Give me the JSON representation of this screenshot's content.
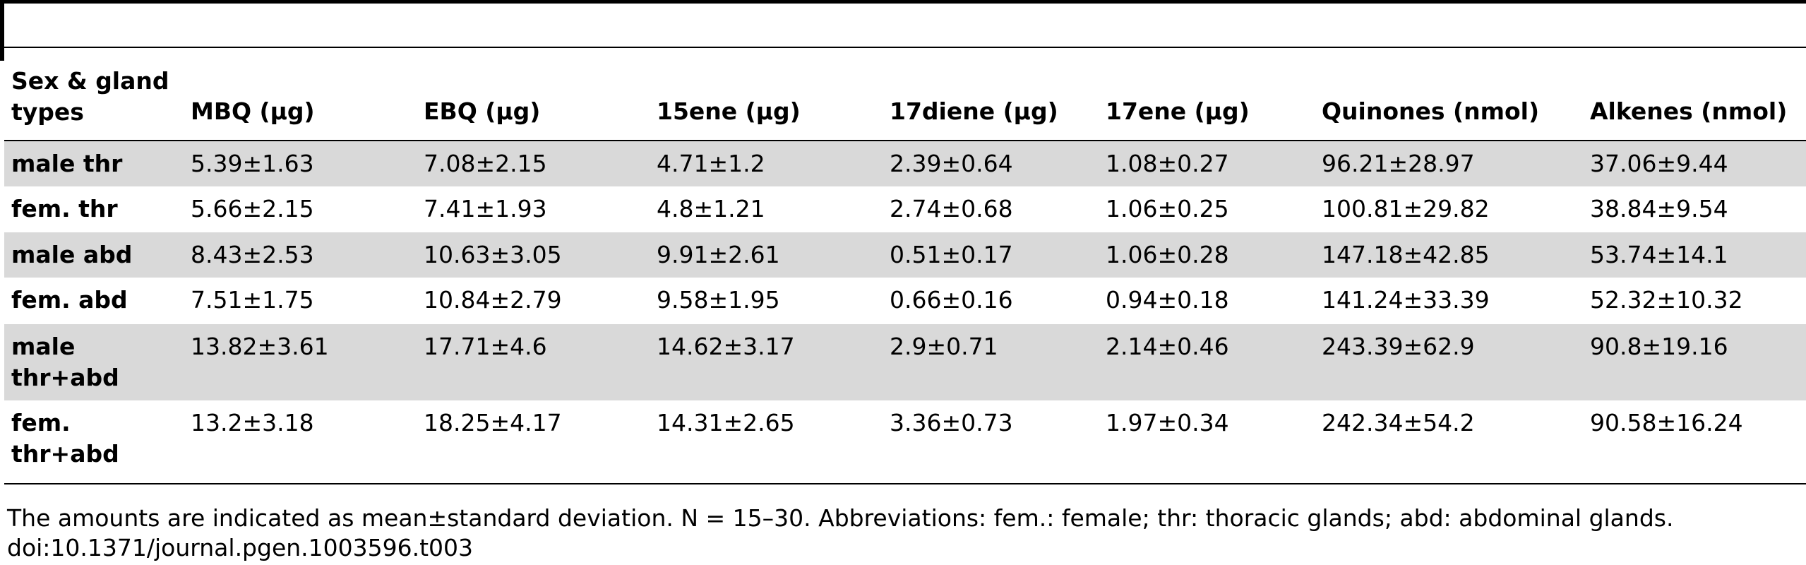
{
  "table": {
    "headers": [
      "Sex & gland types",
      "MBQ (μg)",
      "EBQ (μg)",
      "15ene (μg)",
      "17diene (μg)",
      "17ene (μg)",
      "Quinones (nmol)",
      "Alkenes (nmol)"
    ],
    "rows": [
      {
        "label": "male thr",
        "values": [
          "5.39±1.63",
          "7.08±2.15",
          "4.71±1.2",
          "2.39±0.64",
          "1.08±0.27",
          "96.21±28.97",
          "37.06±9.44"
        ]
      },
      {
        "label": "fem. thr",
        "values": [
          "5.66±2.15",
          "7.41±1.93",
          "4.8±1.21",
          "2.74±0.68",
          "1.06±0.25",
          "100.81±29.82",
          "38.84±9.54"
        ]
      },
      {
        "label": "male abd",
        "values": [
          "8.43±2.53",
          "10.63±3.05",
          "9.91±2.61",
          "0.51±0.17",
          "1.06±0.28",
          "147.18±42.85",
          "53.74±14.1"
        ]
      },
      {
        "label": "fem. abd",
        "values": [
          "7.51±1.75",
          "10.84±2.79",
          "9.58±1.95",
          "0.66±0.16",
          "0.94±0.18",
          "141.24±33.39",
          "52.32±10.32"
        ]
      },
      {
        "label": "male thr+abd",
        "values": [
          "13.82±3.61",
          "17.71±4.6",
          "14.62±3.17",
          "2.9±0.71",
          "2.14±0.46",
          "243.39±62.9",
          "90.8±19.16"
        ]
      },
      {
        "label": "fem. thr+abd",
        "values": [
          "13.2±3.18",
          "18.25±4.17",
          "14.31±2.65",
          "3.36±0.73",
          "1.97±0.34",
          "242.34±54.2",
          "90.58±16.24"
        ]
      }
    ]
  },
  "footnote": "The amounts are indicated as mean±standard deviation. N = 15–30. Abbreviations: fem.: female; thr: thoracic glands; abd: abdominal glands.",
  "doi": "doi:10.1371/journal.pgen.1003596.t003"
}
